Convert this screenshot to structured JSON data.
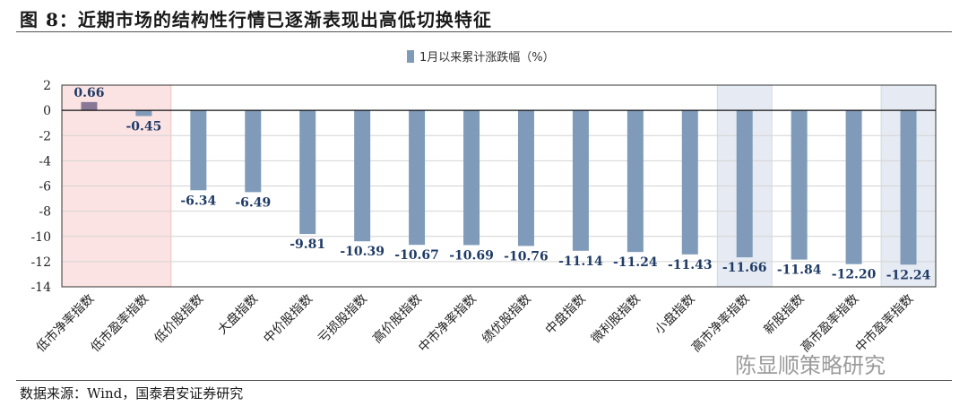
{
  "figure": {
    "title": "图 8：近期市场的结构性行情已逐渐表现出高低切换特征",
    "source": "数据来源：Wind，国泰君安证券研究",
    "watermark": "陈显顺策略研究"
  },
  "colors": {
    "bar": "#7f9bb9",
    "bar_first": "#8a7996",
    "highlight_red": "#fbe3e3",
    "highlight_blue": "#e6ebf3",
    "label": "#1f3b66"
  },
  "chart_data": {
    "type": "bar",
    "legend": "1月以来累计涨跌幅（%）",
    "legend_position": "top-center",
    "categories": [
      "低市净率指数",
      "低市盈率指数",
      "低价股指数",
      "大盘指数",
      "中价股指数",
      "亏损股指数",
      "高价股指数",
      "中市净率指数",
      "绩优股指数",
      "中盘指数",
      "微利股指数",
      "小盘指数",
      "高市净率指数",
      "新股指数",
      "高市盈率指数",
      "中市盈率指数"
    ],
    "values": [
      0.66,
      -0.45,
      -6.34,
      -6.49,
      -9.81,
      -10.39,
      -10.67,
      -10.69,
      -10.76,
      -11.14,
      -11.24,
      -11.43,
      -11.66,
      -11.84,
      -12.2,
      -12.24
    ],
    "value_labels": [
      "0.66",
      "-0.45",
      "-6.34",
      "-6.49",
      "-9.81",
      "-10.39",
      "-10.67",
      "-10.69",
      "-10.76",
      "-11.14",
      "-11.24",
      "-11.43",
      "-11.66",
      "-11.84",
      "-12.20",
      "-12.24"
    ],
    "yticks": [
      "2",
      "0",
      "-2",
      "-4",
      "-6",
      "-8",
      "-10",
      "-12",
      "-14"
    ],
    "ylim": [
      -14,
      2
    ],
    "grid": true,
    "highlight_red": [
      0,
      1
    ],
    "highlight_blue": [
      12,
      15
    ]
  }
}
